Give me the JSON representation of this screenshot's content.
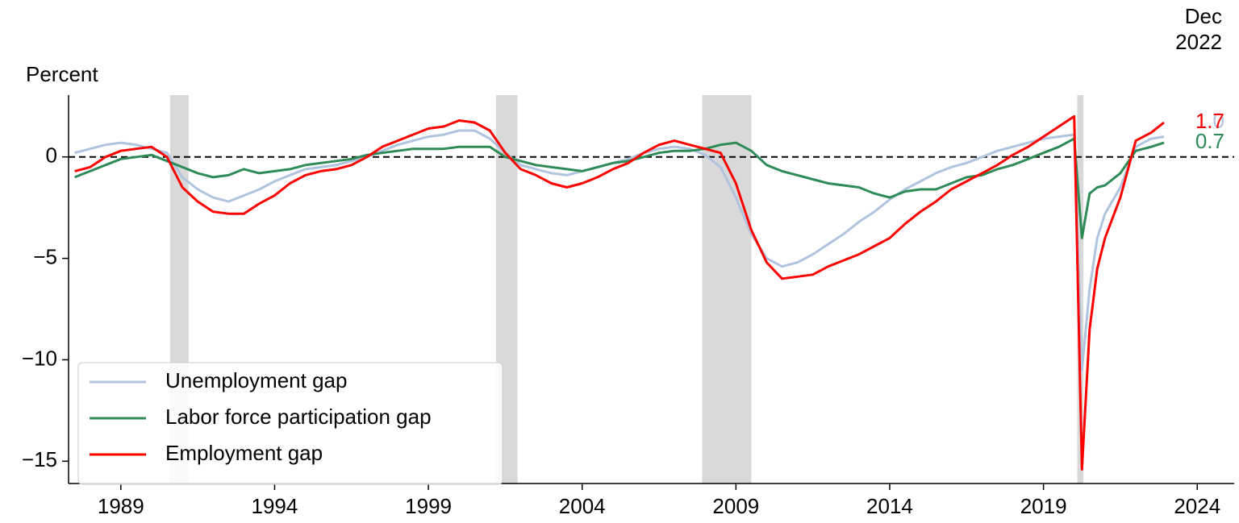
{
  "chart_data": {
    "type": "line",
    "y_label": "Percent",
    "date_annotation": [
      "Dec",
      "2022"
    ],
    "x": [
      1987.5,
      1988,
      1988.5,
      1989,
      1989.5,
      1990,
      1990.5,
      1991,
      1991.5,
      1992,
      1992.5,
      1993,
      1993.5,
      1994,
      1994.5,
      1995,
      1995.5,
      1996,
      1996.5,
      1997,
      1997.5,
      1998,
      1998.5,
      1999,
      1999.5,
      2000,
      2000.5,
      2001,
      2001.5,
      2002,
      2002.5,
      2003,
      2003.5,
      2004,
      2004.5,
      2005,
      2005.5,
      2006,
      2006.5,
      2007,
      2007.5,
      2008,
      2008.5,
      2009,
      2009.5,
      2010,
      2010.5,
      2011,
      2011.5,
      2012,
      2012.5,
      2013,
      2013.5,
      2014,
      2014.5,
      2015,
      2015.5,
      2016,
      2016.5,
      2017,
      2017.5,
      2018,
      2018.5,
      2019,
      2019.5,
      2020,
      2020.25,
      2020.5,
      2020.75,
      2021,
      2021.5,
      2022,
      2022.5,
      2022.917
    ],
    "series": [
      {
        "name": "Unemployment gap",
        "color": "#b0c4de",
        "end_label": "1.0",
        "values": [
          0.2,
          0.4,
          0.6,
          0.7,
          0.6,
          0.4,
          0.2,
          -1.0,
          -1.6,
          -2.0,
          -2.2,
          -1.9,
          -1.6,
          -1.2,
          -0.9,
          -0.6,
          -0.5,
          -0.4,
          -0.2,
          0.0,
          0.3,
          0.6,
          0.8,
          1.0,
          1.1,
          1.3,
          1.3,
          0.9,
          0.2,
          -0.4,
          -0.6,
          -0.8,
          -0.9,
          -0.7,
          -0.5,
          -0.3,
          -0.1,
          0.2,
          0.4,
          0.5,
          0.4,
          0.1,
          -0.5,
          -2.0,
          -3.8,
          -5.0,
          -5.4,
          -5.2,
          -4.8,
          -4.3,
          -3.8,
          -3.2,
          -2.7,
          -2.1,
          -1.6,
          -1.2,
          -0.8,
          -0.5,
          -0.3,
          0.0,
          0.3,
          0.5,
          0.7,
          0.9,
          1.0,
          1.1,
          -10.5,
          -6.5,
          -4.0,
          -2.8,
          -1.5,
          0.5,
          0.9,
          1.0
        ]
      },
      {
        "name": "Labor force participation gap",
        "color": "#2e8b57",
        "end_label": "0.7",
        "values": [
          -1.0,
          -0.7,
          -0.4,
          -0.1,
          0.0,
          0.1,
          -0.2,
          -0.5,
          -0.8,
          -1.0,
          -0.9,
          -0.6,
          -0.8,
          -0.7,
          -0.6,
          -0.4,
          -0.3,
          -0.2,
          -0.1,
          0.1,
          0.2,
          0.3,
          0.4,
          0.4,
          0.4,
          0.5,
          0.5,
          0.5,
          0.0,
          -0.2,
          -0.4,
          -0.5,
          -0.6,
          -0.7,
          -0.5,
          -0.3,
          -0.2,
          0.0,
          0.2,
          0.3,
          0.3,
          0.4,
          0.6,
          0.7,
          0.3,
          -0.4,
          -0.7,
          -0.9,
          -1.1,
          -1.3,
          -1.4,
          -1.5,
          -1.8,
          -2.0,
          -1.7,
          -1.6,
          -1.6,
          -1.3,
          -1.0,
          -0.9,
          -0.6,
          -0.4,
          -0.1,
          0.2,
          0.5,
          0.9,
          -4.0,
          -1.8,
          -1.5,
          -1.4,
          -0.8,
          0.3,
          0.5,
          0.7
        ]
      },
      {
        "name": "Employment gap",
        "color": "#ff0000",
        "end_label": "1.7",
        "values": [
          -0.7,
          -0.5,
          0.0,
          0.3,
          0.4,
          0.5,
          0.0,
          -1.5,
          -2.2,
          -2.7,
          -2.8,
          -2.8,
          -2.3,
          -1.9,
          -1.3,
          -0.9,
          -0.7,
          -0.6,
          -0.4,
          0.0,
          0.5,
          0.8,
          1.1,
          1.4,
          1.5,
          1.8,
          1.7,
          1.3,
          0.2,
          -0.6,
          -0.9,
          -1.3,
          -1.5,
          -1.3,
          -1.0,
          -0.6,
          -0.3,
          0.2,
          0.6,
          0.8,
          0.6,
          0.4,
          0.2,
          -1.3,
          -3.6,
          -5.2,
          -6.0,
          -5.9,
          -5.8,
          -5.4,
          -5.1,
          -4.8,
          -4.4,
          -4.0,
          -3.3,
          -2.7,
          -2.2,
          -1.6,
          -1.2,
          -0.8,
          -0.4,
          0.1,
          0.5,
          1.0,
          1.5,
          2.0,
          -15.4,
          -8.5,
          -5.5,
          -4.0,
          -2.0,
          0.8,
          1.2,
          1.7
        ]
      }
    ],
    "shaded_periods": [
      [
        1990.6,
        1991.2
      ],
      [
        2001.2,
        2001.9
      ],
      [
        2007.9,
        2009.5
      ],
      [
        2020.1,
        2020.3
      ]
    ],
    "reference_line": 0,
    "xlim": [
      1987.3,
      2025.2
    ],
    "ylim": [
      -16.1,
      3.05
    ],
    "xticks": [
      1989,
      1994,
      1999,
      2004,
      2009,
      2014,
      2019,
      2024
    ],
    "yticks": [
      {
        "value": -15,
        "label": "−15"
      },
      {
        "value": -10,
        "label": "−10"
      },
      {
        "value": -5,
        "label": "−5"
      },
      0
    ],
    "legend": "lower left"
  }
}
